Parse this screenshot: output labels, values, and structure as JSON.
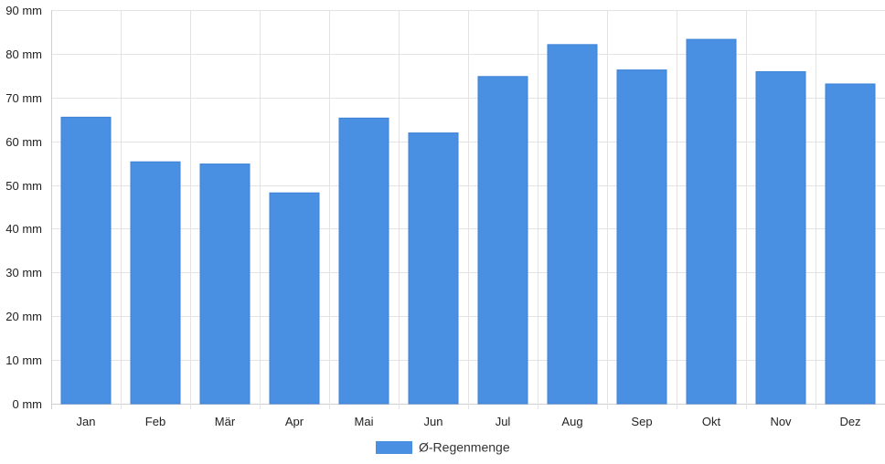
{
  "chart_data": {
    "type": "bar",
    "categories": [
      "Jan",
      "Feb",
      "Mär",
      "Apr",
      "Mai",
      "Jun",
      "Jul",
      "Aug",
      "Sep",
      "Okt",
      "Nov",
      "Dez"
    ],
    "series": [
      {
        "name": "Ø-Regenmenge",
        "color": "#4a90e2",
        "values": [
          65.5,
          55.3,
          54.8,
          48.2,
          65.3,
          61.9,
          74.8,
          82.1,
          76.3,
          83.3,
          75.9,
          73.1
        ]
      }
    ],
    "y_ticks": [
      "0 mm",
      "10 mm",
      "20 mm",
      "30 mm",
      "40 mm",
      "50 mm",
      "60 mm",
      "70 mm",
      "80 mm",
      "90 mm"
    ],
    "ylim": [
      0,
      90
    ],
    "grid": true,
    "legend_position": "bottom"
  }
}
